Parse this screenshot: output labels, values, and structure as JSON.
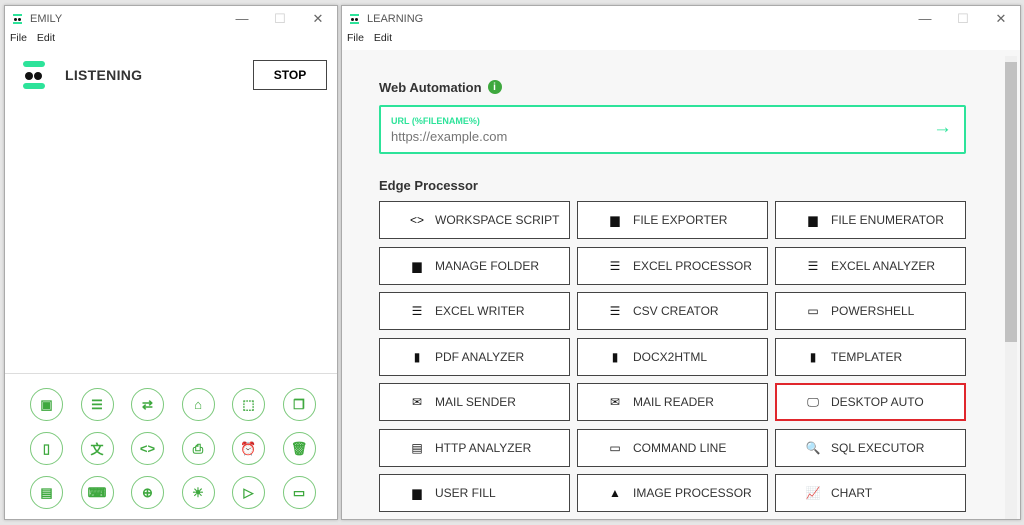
{
  "emily": {
    "title": "EMILY",
    "menu": [
      "File",
      "Edit"
    ],
    "status": "LISTENING",
    "stop_label": "STOP",
    "icons": [
      "excel-file-icon",
      "list-icon",
      "repeat-icon",
      "home-icon",
      "select-icon",
      "copy-icon",
      "clipboard-icon",
      "translate-icon",
      "code-icon",
      "print-icon",
      "alarm-icon",
      "delete-list-icon",
      "archive-icon",
      "keyboard-icon",
      "crosshair-icon",
      "lightbulb-icon",
      "file-send-icon",
      "folder-open-icon"
    ]
  },
  "learning": {
    "title": "LEARNING",
    "menu": [
      "File",
      "Edit"
    ],
    "web_automation": {
      "heading": "Web Automation",
      "url_label": "URL (%FILENAME%)",
      "url_placeholder": "https://example.com"
    },
    "edge_processor": {
      "heading": "Edge Processor",
      "buttons": [
        {
          "label": "WORKSPACE SCRIPT",
          "icon": "code-icon",
          "glyph": "<>"
        },
        {
          "label": "FILE EXPORTER",
          "icon": "folder-icon",
          "glyph": "▆"
        },
        {
          "label": "FILE ENUMERATOR",
          "icon": "folder-icon",
          "glyph": "▆"
        },
        {
          "label": "MANAGE FOLDER",
          "icon": "folder-icon",
          "glyph": "▆"
        },
        {
          "label": "EXCEL PROCESSOR",
          "icon": "list-icon",
          "glyph": "☰"
        },
        {
          "label": "EXCEL ANALYZER",
          "icon": "list-icon",
          "glyph": "☰"
        },
        {
          "label": "EXCEL WRITER",
          "icon": "list-icon",
          "glyph": "☰"
        },
        {
          "label": "CSV CREATOR",
          "icon": "list-icon",
          "glyph": "☰"
        },
        {
          "label": "POWERSHELL",
          "icon": "laptop-icon",
          "glyph": "▭"
        },
        {
          "label": "PDF ANALYZER",
          "icon": "file-icon",
          "glyph": "▮"
        },
        {
          "label": "DOCX2HTML",
          "icon": "file-icon",
          "glyph": "▮"
        },
        {
          "label": "TEMPLATER",
          "icon": "file-icon",
          "glyph": "▮"
        },
        {
          "label": "MAIL SENDER",
          "icon": "mail-icon",
          "glyph": "✉"
        },
        {
          "label": "MAIL READER",
          "icon": "mail-icon",
          "glyph": "✉"
        },
        {
          "label": "DESKTOP AUTO",
          "icon": "desktop-icon",
          "glyph": "🖵",
          "selected": true
        },
        {
          "label": "HTTP ANALYZER",
          "icon": "web-window-icon",
          "glyph": "▤"
        },
        {
          "label": "COMMAND LINE",
          "icon": "laptop-icon",
          "glyph": "▭"
        },
        {
          "label": "SQL EXECUTOR",
          "icon": "search-box-icon",
          "glyph": "🔍"
        },
        {
          "label": "USER FILL",
          "icon": "folder-info-icon",
          "glyph": "▆"
        },
        {
          "label": "IMAGE PROCESSOR",
          "icon": "image-icon",
          "glyph": "▲"
        },
        {
          "label": "CHART",
          "icon": "line-chart-icon",
          "glyph": "📈"
        }
      ]
    }
  },
  "colors": {
    "accent": "#2de39a",
    "green": "#3ea83e",
    "selected_border": "#e0262c"
  }
}
